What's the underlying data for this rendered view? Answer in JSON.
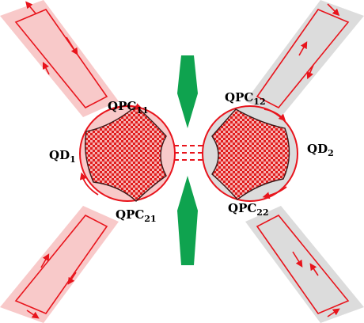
{
  "labels": {
    "qd1": {
      "main": "QD",
      "sub": "1"
    },
    "qd2": {
      "main": "QD",
      "sub": "2"
    },
    "qpc11": {
      "main": "QPC",
      "sub": "11"
    },
    "qpc12": {
      "main": "QPC",
      "sub": "12"
    },
    "qpc21": {
      "main": "QPC",
      "sub": "21"
    },
    "qpc22": {
      "main": "QPC",
      "sub": "22"
    }
  },
  "colors": {
    "edge_line": "#e8141c",
    "left_lead_fill": "#f8c9c9",
    "right_lead_fill": "#dcdcdc",
    "gate_fill": "#0fa34f",
    "dot_fill_light": "#f7b6b6",
    "pattern_dark": "#e02020"
  }
}
